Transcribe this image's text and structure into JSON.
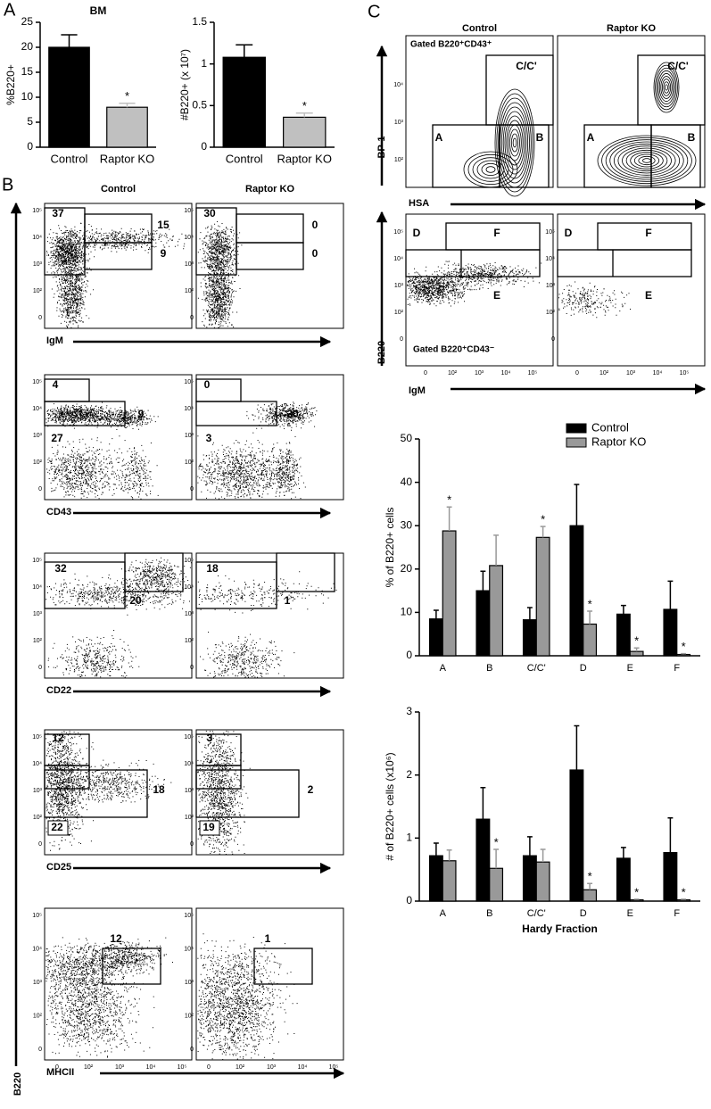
{
  "panel_letters": [
    "A",
    "B",
    "C"
  ],
  "chart_data": [
    {
      "type": "bar",
      "title": "BM",
      "ylabel": "%B220+",
      "categories": [
        "Control",
        "Raptor KO"
      ],
      "values": [
        20,
        8
      ],
      "errors": [
        2.5,
        0.8
      ],
      "colors": [
        "#000000",
        "#c0c0c0"
      ],
      "annotations": [
        null,
        "*"
      ],
      "ylim": [
        0,
        25
      ],
      "yticks": [
        0,
        5,
        10,
        15,
        20,
        25
      ]
    },
    {
      "type": "bar",
      "ylabel": "#B220+ (x 10⁷)",
      "categories": [
        "Control",
        "Raptor KO"
      ],
      "values": [
        1.08,
        0.36
      ],
      "errors": [
        0.15,
        0.05
      ],
      "colors": [
        "#000000",
        "#c0c0c0"
      ],
      "annotations": [
        null,
        "*"
      ],
      "ylim": [
        0,
        1.5
      ],
      "yticks": [
        0,
        0.5,
        1,
        1.5
      ]
    },
    {
      "type": "bar",
      "ylabel": "% of B220+ cells",
      "categories": [
        "A",
        "B",
        "C/C'",
        "D",
        "E",
        "F"
      ],
      "series": [
        {
          "name": "Control",
          "color": "#000000",
          "values": [
            8.5,
            15,
            8.3,
            30,
            9.6,
            10.7
          ],
          "errors": [
            2,
            4.5,
            2.8,
            9.5,
            2,
            6.5
          ],
          "annotations": [
            null,
            null,
            null,
            null,
            null,
            null
          ]
        },
        {
          "name": "Raptor KO",
          "color": "#999999",
          "values": [
            28.8,
            20.8,
            27.3,
            7.3,
            1,
            0.3
          ],
          "errors": [
            5.5,
            7,
            2.5,
            3,
            0.8,
            0.2
          ],
          "annotations": [
            "*",
            null,
            "*",
            "*",
            "*",
            "*"
          ]
        }
      ],
      "legend": "top-right",
      "ylim": [
        0,
        50
      ],
      "yticks": [
        0,
        10,
        20,
        30,
        40,
        50
      ]
    },
    {
      "type": "bar",
      "ylabel": "# of B220+ cells (x10⁶)",
      "xlabel": "Hardy Fraction",
      "categories": [
        "A",
        "B",
        "C/C'",
        "D",
        "E",
        "F"
      ],
      "series": [
        {
          "name": "Control",
          "color": "#000000",
          "values": [
            0.72,
            1.3,
            0.72,
            2.08,
            0.68,
            0.77
          ],
          "errors": [
            0.2,
            0.5,
            0.3,
            0.7,
            0.17,
            0.55
          ],
          "annotations": [
            null,
            null,
            null,
            null,
            null,
            null
          ]
        },
        {
          "name": "Raptor KO",
          "color": "#999999",
          "values": [
            0.64,
            0.52,
            0.62,
            0.18,
            0.02,
            0.02
          ],
          "errors": [
            0.17,
            0.3,
            0.2,
            0.1,
            0.01,
            0.01
          ],
          "annotations": [
            null,
            "*",
            null,
            "*",
            "*",
            "*"
          ]
        }
      ],
      "ylim": [
        0,
        3
      ],
      "yticks": [
        0,
        1,
        2,
        3
      ]
    }
  ],
  "flow_B": {
    "columns": [
      "Control",
      "Raptor KO"
    ],
    "ylabel": "B220",
    "y_tick_labels": [
      "10⁵",
      "10⁴",
      "10³",
      "10²",
      "0"
    ],
    "x_tick_labels": [
      "0",
      "10²",
      "10³",
      "10⁴",
      "10⁵"
    ],
    "rows": [
      {
        "xlabel": "IgM",
        "gates": [
          [
            37,
            15,
            9
          ],
          [
            30,
            0,
            0
          ]
        ]
      },
      {
        "xlabel": "CD43",
        "gates": [
          [
            4,
            9,
            27
          ],
          [
            0,
            30,
            3
          ]
        ]
      },
      {
        "xlabel": "CD22",
        "gates": [
          [
            32,
            20
          ],
          [
            18,
            1
          ]
        ]
      },
      {
        "xlabel": "CD25",
        "gates": [
          [
            12,
            18,
            22
          ],
          [
            3,
            2,
            19
          ]
        ]
      },
      {
        "xlabel": "MHCII",
        "gates": [
          [
            12
          ],
          [
            1
          ]
        ]
      }
    ]
  },
  "flow_C": {
    "columns": [
      "Control",
      "Raptor KO"
    ],
    "top": {
      "ylabel": "BP-1",
      "xlabel": "HSA",
      "note": "Gated B220⁺CD43⁺",
      "gates": [
        "A",
        "B",
        "C/C'"
      ],
      "y_tick_labels": [
        "10⁴",
        "10³",
        "10²"
      ]
    },
    "bottom": {
      "ylabel": "B220",
      "xlabel": "IgM",
      "note": "Gated B220⁺CD43⁻",
      "gates": [
        "D",
        "F",
        "E"
      ],
      "y_tick_labels": [
        "10⁵",
        "10⁴",
        "10³",
        "10²",
        "0"
      ],
      "x_tick_labels": [
        "0",
        "10²",
        "10³",
        "10⁴",
        "10⁵"
      ]
    }
  }
}
